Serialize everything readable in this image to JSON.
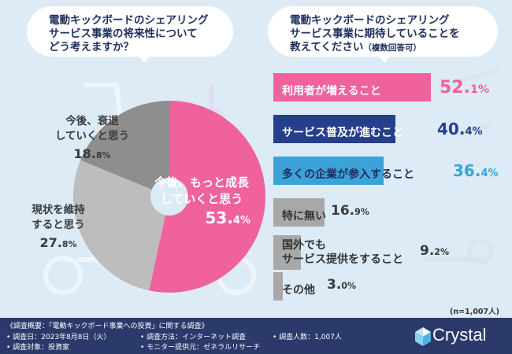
{
  "left_question": {
    "lines": [
      "電動キックボードのシェアリング",
      "サービス事業の将来性について",
      "どう考えますか？"
    ]
  },
  "right_question": {
    "lines": [
      "電動キックボードのシェアリング",
      "サービス事業に期待していることを"
    ],
    "line3_main": "教えてください",
    "line3_sub": "（複数回答可）"
  },
  "pie_labels": {
    "growth": {
      "line1": "今後、もっと成長",
      "line2": "していくと思う",
      "pct_main": "53.",
      "pct_dec": "4%"
    },
    "decline": {
      "line1": "今後、衰退",
      "line2": "していくと思う",
      "pct_main": "18.",
      "pct_dec": "8%"
    },
    "maintain": {
      "line1": "現状を維持",
      "line2": "すると思う",
      "pct_main": "27.",
      "pct_dec": "8%"
    }
  },
  "bar_labels": [
    {
      "text": "利用者が増えること",
      "pct_main": "52.",
      "pct_dec": "1%"
    },
    {
      "text": "サービス普及が進むこと",
      "pct_main": "40.",
      "pct_dec": "4%"
    },
    {
      "text": "多くの企業が参入すること",
      "pct_main": "36.",
      "pct_dec": "4%"
    },
    {
      "text": "特に無い",
      "pct_main": "16.",
      "pct_dec": "9%"
    },
    {
      "text_line1": "国外でも",
      "text_line2": "サービス提供をすること",
      "pct_main": "9.",
      "pct_dec": "2%"
    },
    {
      "text": "その他",
      "pct_main": "3.",
      "pct_dec": "0%"
    }
  ],
  "sample_note": "(n=1,007人)",
  "footer": {
    "overview": "《調査概要：「電動キックボード事業への投資」に関する調査》",
    "date": "• 調査日：2023年8月8日（火）",
    "target": "• 調査対象：投資家",
    "method": "• 調査方法：インターネット調査",
    "provider": "• モニター提供元：ゼネラルリサーチ",
    "count": "• 調査人数：1,007人",
    "brand": "Crystal"
  },
  "colors": {
    "background": "#dcebf6",
    "pink": "#f0629c",
    "navy": "#263f8c",
    "cyan": "#3ca3d9",
    "gray_dark": "#8e8e8e",
    "gray_light": "#bdbdbd",
    "gray_mid": "#a8a8a8",
    "footer": "#2b3a6b",
    "pct_gray": "#3a3a3a"
  },
  "chart_data": [
    {
      "type": "pie",
      "categories": [
        "今後、もっと成長していくと思う",
        "現状を維持すると思う",
        "今後、衰退していくと思う"
      ],
      "values": [
        53.4,
        27.8,
        18.8
      ],
      "title": "電動キックボードのシェアリングサービス事業の将来性についてどう考えますか？"
    },
    {
      "type": "bar",
      "orientation": "horizontal",
      "categories": [
        "利用者が増えること",
        "サービス普及が進むこと",
        "多くの企業が参入すること",
        "特に無い",
        "国外でもサービス提供をすること",
        "その他"
      ],
      "values": [
        52.1,
        40.4,
        36.4,
        16.9,
        9.2,
        3.0
      ],
      "title": "電動キックボードのシェアリングサービス事業に期待していることを教えてください（複数回答可）"
    }
  ]
}
